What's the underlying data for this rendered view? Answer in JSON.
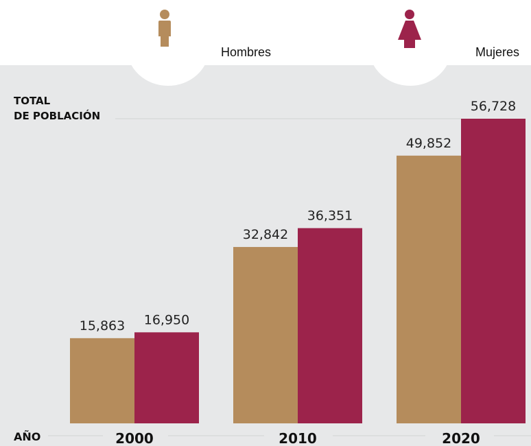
{
  "chart_data": {
    "type": "bar",
    "ylabel_line1": "TOTAL",
    "ylabel_line2": "DE POBLACIÓN",
    "xlabel": "AÑO",
    "categories": [
      "2000",
      "2010",
      "2020"
    ],
    "series": [
      {
        "name": "Hombres",
        "color": "#b58c5c",
        "icon": "male-person-icon",
        "values": [
          15863,
          32842,
          49852
        ]
      },
      {
        "name": "Mujeres",
        "color": "#9c234b",
        "icon": "female-person-icon",
        "values": [
          16950,
          36351,
          56728
        ]
      }
    ],
    "value_labels": [
      [
        "15,863",
        "32,842",
        "49,852"
      ],
      [
        "16,950",
        "36,351",
        "56,728"
      ]
    ],
    "ylim": [
      0,
      56728
    ],
    "grid": false,
    "legend_position": "top",
    "background_color": "#e7e8e9"
  }
}
